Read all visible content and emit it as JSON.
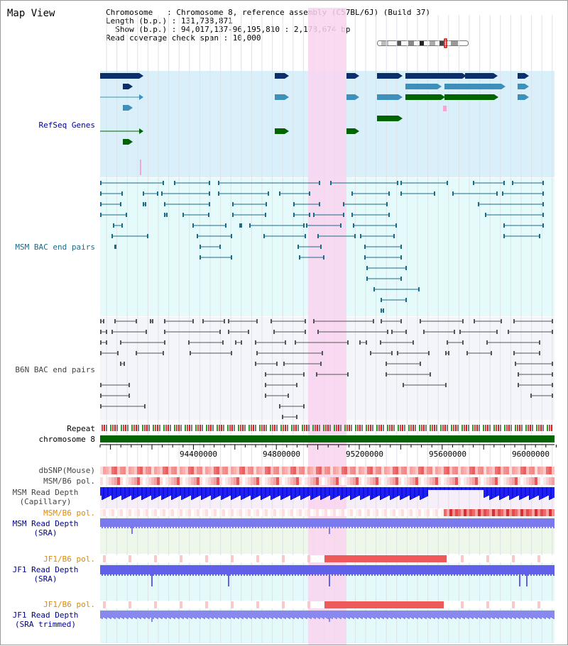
{
  "title": "Map View",
  "info": {
    "chromosome": "Chromosome   : Chromosome 8, reference assembly (C57BL/6J) (Build 37)",
    "length": "Length (b.p.) : 131,738,871",
    "show": "  Show (b.p.) : 94,017,137-96,195,810 : 2,178,674 bp",
    "span": "Read coverage check span : 10,000"
  },
  "tracks": {
    "refseq": "RefSeq Genes",
    "msm_bac": "MSM BAC end pairs",
    "b6n_bac": "B6N BAC end pairs",
    "repeat": "Repeat",
    "chromosome": "chromosome 8",
    "dbsnp": "dbSNP(Mouse)",
    "msm_b6_pol": "MSM/B6 pol.",
    "msm_read_cap_1": "MSM Read Depth",
    "msm_read_cap_2": "(Capillary)",
    "msm_b6_pol_orange": "MSM/B6 pol.",
    "msm_read_sra_1": "MSM Read Depth",
    "msm_read_sra_2": "(SRA)",
    "jf1_b6_pol_1": "JF1/B6 pol.",
    "jf1_read_sra_1": "JF1 Read Depth",
    "jf1_read_sra_2": "(SRA)",
    "jf1_b6_pol_2": "JF1/B6 pol.",
    "jf1_read_trim_1": "JF1 Read Depth",
    "jf1_read_trim_2": "(SRA trimmed)"
  },
  "axis": {
    "ticks": [
      "94400000",
      "94800000",
      "95200000",
      "95600000",
      "96000000"
    ]
  },
  "colors": {
    "refseq_bg": "#d9f0fb",
    "msm_bg": "#e5fbfb",
    "b6n_bg": "#f4f5fb",
    "highlight": "#f9d3ef",
    "navy": "#0a2f6b",
    "steel": "#3f8fbb",
    "green": "#006400",
    "teal_line": "#1a6a8a",
    "gray_line": "#555555",
    "label_blue": "#00008b",
    "label_teal": "#1a6a8a",
    "label_orange": "#e08a00"
  }
}
